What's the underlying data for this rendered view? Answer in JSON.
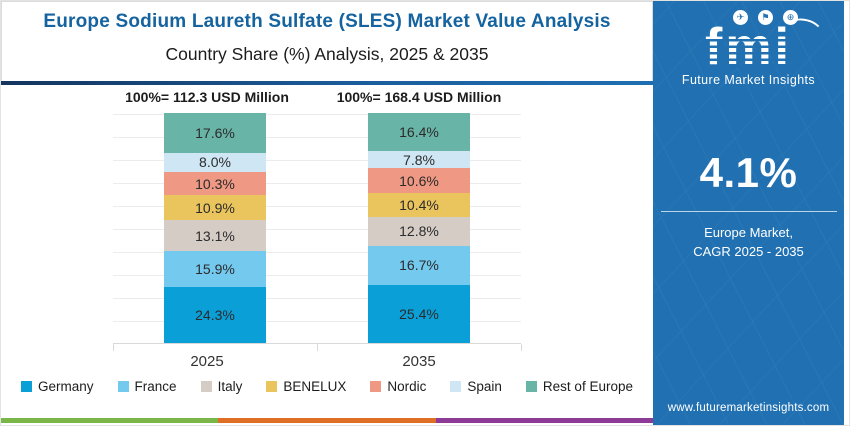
{
  "header": {
    "title": "Europe Sodium Laureth Sulfate (SLES) Market Value Analysis",
    "subtitle": "Country Share (%) Analysis, 2025 & 2035"
  },
  "chart_data": {
    "type": "bar",
    "stacked": true,
    "categories": [
      "2025",
      "2035"
    ],
    "totals": [
      "100%= 112.3 USD Million",
      "100%= 168.4 USD Million"
    ],
    "series": [
      {
        "name": "Germany",
        "color": "#0a9fd7",
        "values": [
          24.3,
          25.4
        ]
      },
      {
        "name": "France",
        "color": "#74c9ef",
        "values": [
          15.9,
          16.7
        ]
      },
      {
        "name": "Italy",
        "color": "#d5ccc6",
        "values": [
          13.1,
          12.8
        ]
      },
      {
        "name": "BENELUX",
        "color": "#eac45d",
        "values": [
          10.9,
          10.4
        ]
      },
      {
        "name": "Nordic",
        "color": "#ef9883",
        "values": [
          10.3,
          10.6
        ]
      },
      {
        "name": "Spain",
        "color": "#cfe6f4",
        "values": [
          8.0,
          7.8
        ]
      },
      {
        "name": "Rest of Europe",
        "color": "#68b4a7",
        "values": [
          17.6,
          16.4
        ]
      }
    ],
    "value_suffix": "%",
    "ylim": [
      0,
      100
    ],
    "grid": true,
    "legend_position": "bottom",
    "stack_order_top_to_bottom": [
      "Rest of Europe",
      "Spain",
      "Nordic",
      "BENELUX",
      "Italy",
      "France",
      "Germany"
    ]
  },
  "sidebar": {
    "logo": {
      "text": "fmi",
      "tagline": "Future Market Insights"
    },
    "cagr_value": "4.1%",
    "cagr_label_line1": "Europe Market,",
    "cagr_label_line2": "CAGR 2025 - 2035",
    "website": "www.futuremarketinsights.com",
    "background_color": "#2171b2"
  },
  "accents": {
    "title_color": "#15639f",
    "header_rule_colors": [
      "#14355e",
      "#1e6fb2"
    ],
    "footer_stripe_colors": [
      "#7ab648",
      "#e06f26",
      "#8e3a97"
    ]
  }
}
